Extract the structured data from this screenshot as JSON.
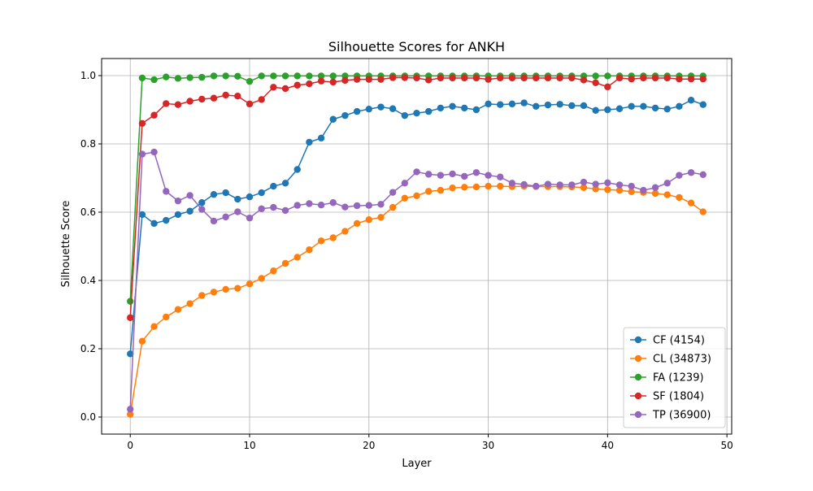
{
  "chart_data": {
    "type": "line",
    "title": "Silhouette Scores for ANKH",
    "xlabel": "Layer",
    "ylabel": "Silhouette Score",
    "xlim": [
      -2.4,
      50.4
    ],
    "ylim": [
      -0.05,
      1.05
    ],
    "xticks": [
      0,
      10,
      20,
      30,
      40,
      50
    ],
    "yticks": [
      0.0,
      0.2,
      0.4,
      0.6,
      0.8,
      1.0
    ],
    "grid": true,
    "legend_position": "lower right",
    "x": [
      0,
      1,
      2,
      3,
      4,
      5,
      6,
      7,
      8,
      9,
      10,
      11,
      12,
      13,
      14,
      15,
      16,
      17,
      18,
      19,
      20,
      21,
      22,
      23,
      24,
      25,
      26,
      27,
      28,
      29,
      30,
      31,
      32,
      33,
      34,
      35,
      36,
      37,
      38,
      39,
      40,
      41,
      42,
      43,
      44,
      45,
      46,
      47,
      48
    ],
    "series": [
      {
        "name": "CF (4154)",
        "color": "#1f77b4",
        "values": [
          0.185,
          0.593,
          0.567,
          0.576,
          0.593,
          0.603,
          0.628,
          0.652,
          0.657,
          0.638,
          0.645,
          0.657,
          0.676,
          0.685,
          0.725,
          0.805,
          0.817,
          0.872,
          0.883,
          0.895,
          0.902,
          0.908,
          0.903,
          0.883,
          0.89,
          0.895,
          0.905,
          0.91,
          0.905,
          0.9,
          0.917,
          0.915,
          0.917,
          0.92,
          0.91,
          0.914,
          0.916,
          0.912,
          0.912,
          0.898,
          0.9,
          0.903,
          0.91,
          0.91,
          0.905,
          0.902,
          0.91,
          0.928,
          0.915
        ]
      },
      {
        "name": "CL (34873)",
        "color": "#ff7f0e",
        "values": [
          0.008,
          0.222,
          0.265,
          0.293,
          0.315,
          0.332,
          0.356,
          0.366,
          0.374,
          0.377,
          0.39,
          0.406,
          0.428,
          0.45,
          0.468,
          0.49,
          0.516,
          0.525,
          0.544,
          0.567,
          0.578,
          0.585,
          0.614,
          0.641,
          0.648,
          0.661,
          0.664,
          0.671,
          0.673,
          0.674,
          0.676,
          0.676,
          0.675,
          0.676,
          0.675,
          0.675,
          0.675,
          0.674,
          0.672,
          0.668,
          0.666,
          0.664,
          0.66,
          0.658,
          0.655,
          0.651,
          0.643,
          0.627,
          0.601
        ]
      },
      {
        "name": "FA (1239)",
        "color": "#2ca02c",
        "values": [
          0.339,
          0.993,
          0.988,
          0.996,
          0.992,
          0.994,
          0.995,
          0.999,
          0.999,
          0.998,
          0.983,
          0.999,
          0.999,
          0.999,
          0.999,
          0.999,
          0.999,
          0.999,
          0.999,
          0.999,
          0.999,
          0.999,
          0.999,
          0.999,
          0.999,
          0.999,
          0.999,
          0.999,
          0.999,
          0.999,
          0.999,
          0.999,
          0.999,
          0.999,
          0.999,
          0.999,
          0.999,
          0.999,
          0.999,
          0.999,
          0.999,
          0.999,
          0.999,
          0.999,
          0.999,
          0.999,
          0.999,
          0.999,
          0.999
        ]
      },
      {
        "name": "SF (1804)",
        "color": "#d62728",
        "values": [
          0.291,
          0.86,
          0.884,
          0.918,
          0.915,
          0.925,
          0.931,
          0.934,
          0.943,
          0.94,
          0.917,
          0.93,
          0.966,
          0.962,
          0.972,
          0.976,
          0.984,
          0.981,
          0.986,
          0.989,
          0.989,
          0.989,
          0.994,
          0.994,
          0.993,
          0.987,
          0.993,
          0.993,
          0.993,
          0.993,
          0.989,
          0.993,
          0.993,
          0.993,
          0.993,
          0.993,
          0.993,
          0.993,
          0.987,
          0.979,
          0.967,
          0.993,
          0.99,
          0.993,
          0.993,
          0.993,
          0.99,
          0.99,
          0.99
        ]
      },
      {
        "name": "TP (36900)",
        "color": "#9467bd",
        "values": [
          0.023,
          0.77,
          0.776,
          0.661,
          0.633,
          0.649,
          0.608,
          0.574,
          0.586,
          0.601,
          0.583,
          0.61,
          0.614,
          0.605,
          0.62,
          0.625,
          0.621,
          0.628,
          0.615,
          0.619,
          0.62,
          0.623,
          0.658,
          0.685,
          0.718,
          0.711,
          0.708,
          0.712,
          0.705,
          0.716,
          0.708,
          0.703,
          0.685,
          0.681,
          0.676,
          0.682,
          0.68,
          0.68,
          0.688,
          0.682,
          0.686,
          0.68,
          0.676,
          0.664,
          0.672,
          0.685,
          0.708,
          0.716,
          0.71
        ]
      }
    ]
  }
}
